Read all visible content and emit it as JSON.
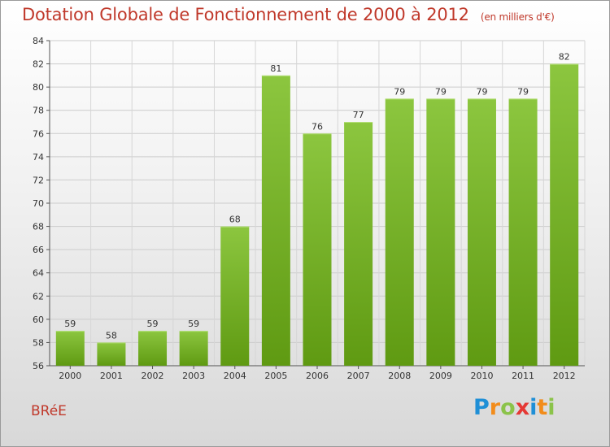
{
  "chart_data": {
    "type": "bar",
    "title": "Dotation Globale de Fonctionnement de 2000 à 2012",
    "unit_note": "(en milliers d'€)",
    "categories": [
      "2000",
      "2001",
      "2002",
      "2003",
      "2004",
      "2005",
      "2006",
      "2007",
      "2008",
      "2009",
      "2010",
      "2011",
      "2012"
    ],
    "values": [
      59,
      58,
      59,
      59,
      68,
      81,
      76,
      77,
      79,
      79,
      79,
      79,
      82
    ],
    "ylim": [
      56,
      84
    ],
    "yticks": [
      56,
      58,
      60,
      62,
      64,
      66,
      68,
      70,
      72,
      74,
      76,
      78,
      80,
      82,
      84
    ],
    "grid": true,
    "bar_color": "#8cc63f",
    "bar_color_dark": "#5f9a12"
  },
  "footer": {
    "commune": "BRéE",
    "logo_letters": [
      {
        "ch": "P",
        "color": "#1f8fd6"
      },
      {
        "ch": "r",
        "color": "#f28c1b"
      },
      {
        "ch": "o",
        "color": "#8bc34a"
      },
      {
        "ch": "x",
        "color": "#e53935"
      },
      {
        "ch": "i",
        "color": "#1f8fd6"
      },
      {
        "ch": "t",
        "color": "#f28c1b"
      },
      {
        "ch": "i",
        "color": "#8bc34a"
      }
    ]
  }
}
